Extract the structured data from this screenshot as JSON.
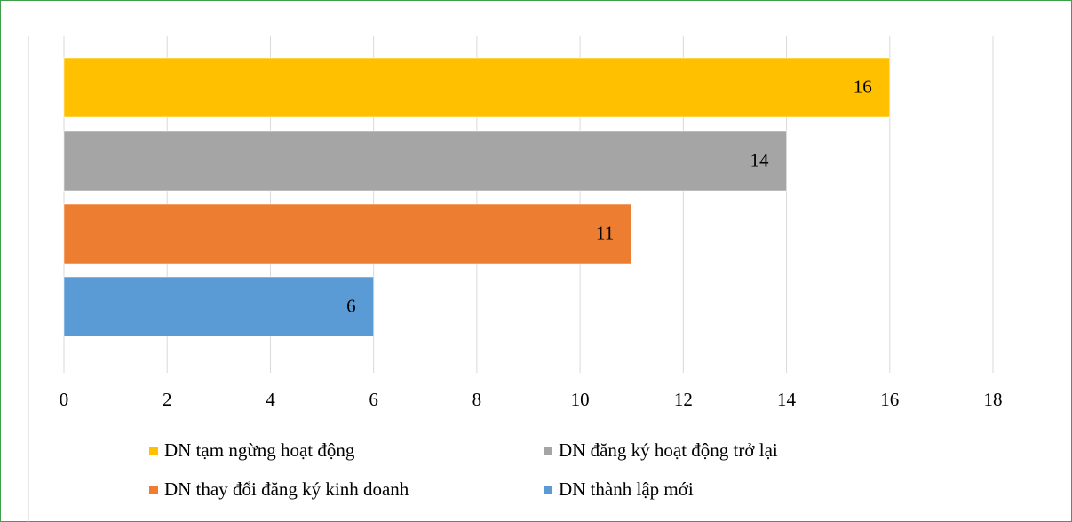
{
  "chart_data": {
    "type": "barh",
    "series": [
      {
        "name": "DN tạm ngừng hoạt động",
        "color": "#ffc000",
        "values": [
          16
        ]
      },
      {
        "name": "DN đăng ký hoạt động trở lại",
        "color": "#a5a5a5",
        "values": [
          14
        ]
      },
      {
        "name": "DN thay đổi đăng ký kinh doanh",
        "color": "#ed7d31",
        "values": [
          11
        ]
      },
      {
        "name": "DN thành lập mới",
        "color": "#5b9bd5",
        "values": [
          6
        ]
      }
    ],
    "xlim": [
      0,
      18
    ],
    "xticks": [
      0,
      2,
      4,
      6,
      8,
      10,
      12,
      14,
      16,
      18
    ],
    "grid": true,
    "legend": "bottom"
  }
}
